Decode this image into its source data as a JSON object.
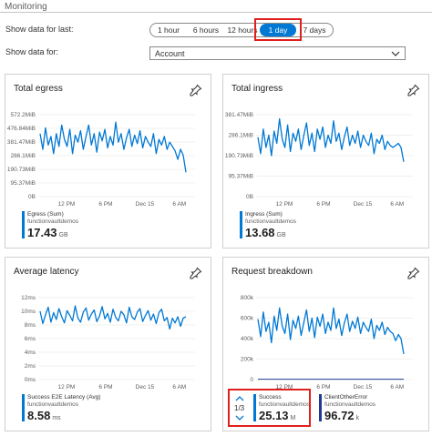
{
  "header": {
    "title": "Monitoring"
  },
  "filters": {
    "time_label": "Show data for last:",
    "time_options": [
      "1 hour",
      "6 hours",
      "12 hours",
      "1 day",
      "7 days"
    ],
    "time_selected": "1 day",
    "scope_label": "Show data for:",
    "scope_value": "Account"
  },
  "colors": {
    "accent": "#0078d4",
    "series_dark": "#1f3a93",
    "highlight": "#e0201f"
  },
  "icons": {
    "pin": "pin-icon",
    "dropdown": "chevron-down-icon"
  },
  "cards": {
    "egress": {
      "title": "Total egress",
      "legend_name": "Egress (Sum)",
      "legend_sub": "functionvaultdemos",
      "value": "17.43",
      "unit": "GB"
    },
    "ingress": {
      "title": "Total ingress",
      "legend_name": "Ingress (Sum)",
      "legend_sub": "functionvaultdemos",
      "value": "13.68",
      "unit": "GB"
    },
    "latency": {
      "title": "Average latency",
      "legend_name": "Success E2E Latency (Avg)",
      "legend_sub": "functionvaultdemos",
      "value": "8.58",
      "unit": "ms"
    },
    "requests": {
      "title": "Request breakdown",
      "pager": "1/3",
      "legend_name": "Success",
      "legend_sub": "functionvaultdemos",
      "value": "25.13",
      "unit": "M",
      "legend2_name": "ClientOtherError",
      "legend2_sub": "functionvaultdemos",
      "value2": "96.72",
      "unit2": "k"
    }
  },
  "chart_data": [
    {
      "type": "line",
      "title": "Total egress",
      "y_ticks": [
        "572.2MiB",
        "476.84MiB",
        "381.47MiB",
        "286.1MiB",
        "190.73MiB",
        "95.37MiB",
        "0B"
      ],
      "ylim": [
        0,
        572.2
      ],
      "x_ticks": [
        "12 PM",
        "6 PM",
        "Dec 15",
        "6 AM"
      ],
      "series": [
        {
          "name": "Egress (Sum)",
          "values": [
            440,
            330,
            480,
            360,
            420,
            300,
            440,
            350,
            500,
            400,
            350,
            470,
            300,
            430,
            380,
            460,
            330,
            420,
            500,
            360,
            440,
            310,
            450,
            390,
            470,
            340,
            420,
            360,
            520,
            380,
            440,
            330,
            410,
            470,
            350,
            430,
            370,
            460,
            340,
            420,
            380,
            350,
            440,
            300,
            400,
            360,
            420,
            330,
            380,
            350,
            320,
            260,
            330,
            290,
            170
          ]
        }
      ]
    },
    {
      "type": "line",
      "title": "Total ingress",
      "y_ticks": [
        "381.47MiB",
        "286.1MiB",
        "190.73MiB",
        "95.37MiB",
        "0B"
      ],
      "ylim": [
        0,
        400
      ],
      "x_ticks": [
        "12 PM",
        "6 PM",
        "Dec 15",
        "6 AM"
      ],
      "series": [
        {
          "name": "Ingress (Sum)",
          "values": [
            290,
            210,
            330,
            240,
            300,
            200,
            320,
            260,
            380,
            280,
            240,
            350,
            220,
            310,
            270,
            330,
            230,
            300,
            360,
            250,
            310,
            220,
            330,
            280,
            340,
            240,
            300,
            260,
            370,
            270,
            310,
            230,
            290,
            340,
            250,
            300,
            260,
            320,
            240,
            300,
            270,
            250,
            310,
            210,
            280,
            260,
            300,
            230,
            270,
            250,
            240,
            250,
            260,
            240,
            170
          ]
        }
      ]
    },
    {
      "type": "line",
      "title": "Average latency",
      "y_ticks": [
        "12ms",
        "10ms",
        "8ms",
        "6ms",
        "4ms",
        "2ms",
        "0ms"
      ],
      "ylim": [
        0,
        12
      ],
      "x_ticks": [
        "12 PM",
        "6 PM",
        "Dec 15",
        "6 AM"
      ],
      "series": [
        {
          "name": "Success E2E Latency (Avg)",
          "values": [
            10,
            8.2,
            9.5,
            10.6,
            8.4,
            9.8,
            8.8,
            10.4,
            9.2,
            8.3,
            10.1,
            9.4,
            8.6,
            10.8,
            9.0,
            8.4,
            9.9,
            10.5,
            8.7,
            9.6,
            10.2,
            8.5,
            9.3,
            10.7,
            8.9,
            9.7,
            8.4,
            10.3,
            9.1,
            8.6,
            10.0,
            9.5,
            8.3,
            10.6,
            9.2,
            8.8,
            9.9,
            10.4,
            8.5,
            9.4,
            10.1,
            8.7,
            9.6,
            8.2,
            9.8,
            10.3,
            8.6,
            9.1,
            7.4,
            9.0,
            8.3,
            9.2,
            7.8,
            9.0,
            9.2
          ]
        }
      ]
    },
    {
      "type": "line",
      "title": "Request breakdown",
      "y_ticks": [
        "800k",
        "600k",
        "400k",
        "200k",
        "0"
      ],
      "ylim": [
        0,
        800
      ],
      "x_ticks": [
        "12 PM",
        "6 PM",
        "Dec 15",
        "6 AM"
      ],
      "series": [
        {
          "name": "Success",
          "values": [
            590,
            420,
            660,
            470,
            560,
            360,
            620,
            480,
            700,
            520,
            450,
            640,
            390,
            580,
            500,
            620,
            430,
            560,
            680,
            470,
            600,
            410,
            610,
            520,
            640,
            450,
            560,
            480,
            700,
            500,
            590,
            430,
            550,
            640,
            470,
            570,
            500,
            610,
            450,
            560,
            510,
            470,
            590,
            400,
            530,
            480,
            560,
            440,
            510,
            470,
            450,
            380,
            440,
            400,
            250
          ]
        },
        {
          "name": "ClientOtherError",
          "values": [
            4,
            4,
            4,
            4,
            4,
            4,
            4,
            4,
            4,
            4,
            4,
            4,
            4,
            4,
            4,
            4,
            4,
            4,
            4,
            4,
            4,
            4,
            4,
            4,
            4,
            4,
            4,
            4,
            4,
            4,
            4,
            4,
            4,
            4,
            4,
            4,
            4,
            4,
            4,
            4,
            4,
            4,
            4,
            4,
            4,
            4,
            4,
            4,
            4,
            4,
            4,
            4,
            4,
            4,
            4
          ]
        }
      ]
    }
  ]
}
